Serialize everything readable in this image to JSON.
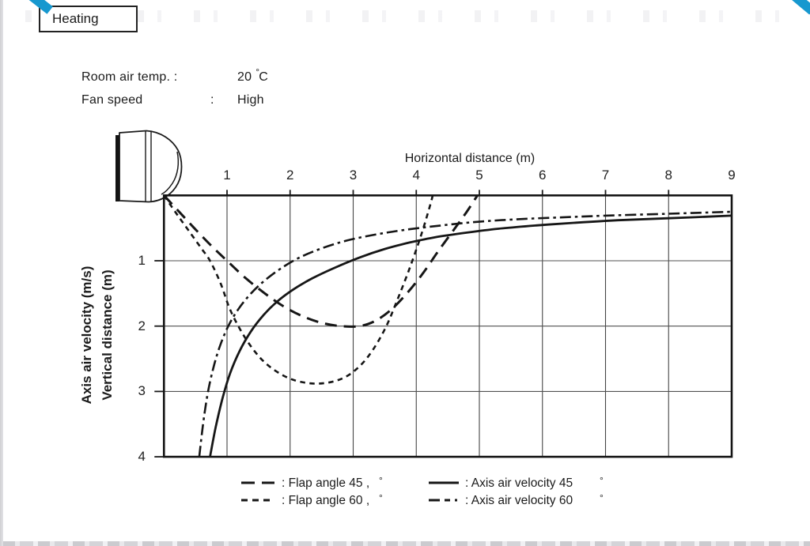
{
  "artifacts": {
    "accent_color": "#1798cf"
  },
  "header": {
    "mode_label": "Heating"
  },
  "conditions": {
    "room_air_temp_label": "Room air temp. :",
    "room_air_temp_value": "20",
    "room_air_temp_unit_degree": "°",
    "room_air_temp_unit_letter": "C",
    "fan_speed_label": "Fan speed",
    "fan_speed_colon": ":",
    "fan_speed_value": "High"
  },
  "chart_data": {
    "type": "line",
    "xlabel": "Horizontal distance (m)",
    "ylabel_line1": "Axis air velocity (m/s)",
    "ylabel_line2": "Vertical distance (m)",
    "x_axis_side": "top",
    "y_axis_inverted": true,
    "xlim": [
      0,
      9
    ],
    "ylim": [
      0,
      4
    ],
    "x_ticks": [
      1,
      2,
      3,
      4,
      5,
      6,
      7,
      8,
      9
    ],
    "y_ticks": [
      1,
      2,
      3,
      4
    ],
    "grid": true,
    "line_color": "#161616",
    "series": [
      {
        "name": "Flap angle 45°",
        "style": "long-dash",
        "points": [
          [
            0,
            0
          ],
          [
            0.25,
            0.26
          ],
          [
            0.5,
            0.52
          ],
          [
            0.75,
            0.77
          ],
          [
            1.0,
            1.0
          ],
          [
            1.3,
            1.27
          ],
          [
            1.6,
            1.5
          ],
          [
            1.9,
            1.7
          ],
          [
            2.2,
            1.85
          ],
          [
            2.5,
            1.95
          ],
          [
            2.8,
            2.0
          ],
          [
            3.1,
            2.0
          ],
          [
            3.35,
            1.92
          ],
          [
            3.6,
            1.75
          ],
          [
            3.85,
            1.5
          ],
          [
            4.1,
            1.2
          ],
          [
            4.35,
            0.85
          ],
          [
            4.6,
            0.52
          ],
          [
            4.8,
            0.25
          ],
          [
            4.97,
            0.0
          ]
        ]
      },
      {
        "name": "Flap angle 60°",
        "style": "short-dash",
        "points": [
          [
            0,
            0
          ],
          [
            0.2,
            0.28
          ],
          [
            0.4,
            0.55
          ],
          [
            0.6,
            0.82
          ],
          [
            0.73,
            1.0
          ],
          [
            0.9,
            1.35
          ],
          [
            1.05,
            1.75
          ],
          [
            1.25,
            2.12
          ],
          [
            1.45,
            2.4
          ],
          [
            1.65,
            2.6
          ],
          [
            1.9,
            2.76
          ],
          [
            2.15,
            2.85
          ],
          [
            2.45,
            2.88
          ],
          [
            2.75,
            2.83
          ],
          [
            3.0,
            2.7
          ],
          [
            3.25,
            2.45
          ],
          [
            3.5,
            2.05
          ],
          [
            3.7,
            1.6
          ],
          [
            3.9,
            1.1
          ],
          [
            4.08,
            0.6
          ],
          [
            4.22,
            0.15
          ],
          [
            4.26,
            0.0
          ]
        ]
      },
      {
        "name": "Axis air velocity 45°",
        "style": "solid",
        "points": [
          [
            0.73,
            4.0
          ],
          [
            0.82,
            3.55
          ],
          [
            0.93,
            3.1
          ],
          [
            1.05,
            2.72
          ],
          [
            1.2,
            2.38
          ],
          [
            1.38,
            2.08
          ],
          [
            1.58,
            1.83
          ],
          [
            1.8,
            1.62
          ],
          [
            2.05,
            1.44
          ],
          [
            2.35,
            1.27
          ],
          [
            2.7,
            1.11
          ],
          [
            3.1,
            0.95
          ],
          [
            3.5,
            0.82
          ],
          [
            3.9,
            0.72
          ],
          [
            4.3,
            0.64
          ],
          [
            4.8,
            0.57
          ],
          [
            5.3,
            0.51
          ],
          [
            5.9,
            0.46
          ],
          [
            6.5,
            0.42
          ],
          [
            7.2,
            0.38
          ],
          [
            8.0,
            0.35
          ],
          [
            9.0,
            0.31
          ]
        ]
      },
      {
        "name": "Axis air velocity 60°",
        "style": "dash-dot",
        "points": [
          [
            0.56,
            4.0
          ],
          [
            0.62,
            3.5
          ],
          [
            0.69,
            3.05
          ],
          [
            0.78,
            2.65
          ],
          [
            0.89,
            2.3
          ],
          [
            1.02,
            2.0
          ],
          [
            1.18,
            1.74
          ],
          [
            1.38,
            1.5
          ],
          [
            1.6,
            1.3
          ],
          [
            1.85,
            1.12
          ],
          [
            2.15,
            0.95
          ],
          [
            2.5,
            0.81
          ],
          [
            2.9,
            0.69
          ],
          [
            3.35,
            0.6
          ],
          [
            3.8,
            0.53
          ],
          [
            4.3,
            0.47
          ],
          [
            4.9,
            0.41
          ],
          [
            5.5,
            0.37
          ],
          [
            6.2,
            0.34
          ],
          [
            7.0,
            0.31
          ],
          [
            8.0,
            0.28
          ],
          [
            9.0,
            0.25
          ]
        ]
      }
    ]
  },
  "legend": [
    {
      "style": "long-dash",
      "label": ": Flap angle 45 ,",
      "degree": "°"
    },
    {
      "style": "short-dash",
      "label": ": Flap angle 60 ,",
      "degree": "°"
    },
    {
      "style": "solid",
      "label": ": Axis air velocity 45",
      "degree": "°"
    },
    {
      "style": "dash-dot",
      "label": ": Axis air velocity 60",
      "degree": "°"
    }
  ],
  "icons": {
    "unit_icon": "wall-mounted-indoor-unit-side-view"
  }
}
